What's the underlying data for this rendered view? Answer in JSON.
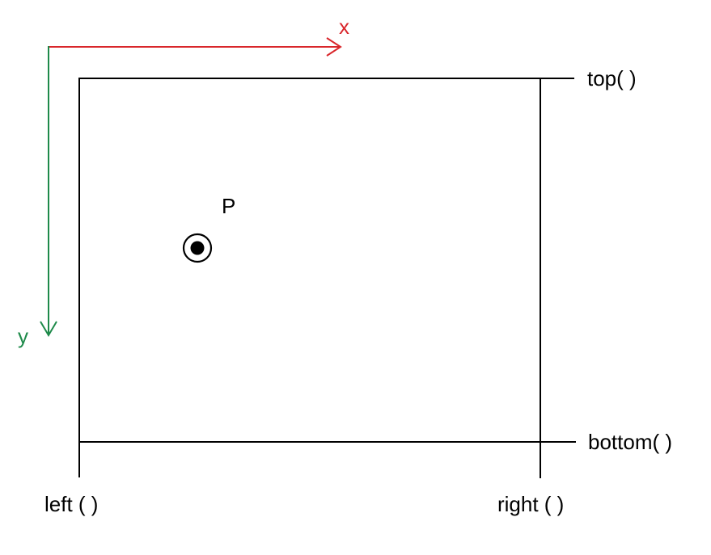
{
  "axes": {
    "x": {
      "label": "x",
      "color": "#d9262b"
    },
    "y": {
      "label": "y",
      "color": "#1e8a4a"
    }
  },
  "edges": {
    "top": "top( )",
    "bottom": "bottom( )",
    "left": "left ( )",
    "right": "right ( )"
  },
  "point": {
    "label": "P"
  },
  "colors": {
    "line": "#000000",
    "background": "#ffffff"
  }
}
